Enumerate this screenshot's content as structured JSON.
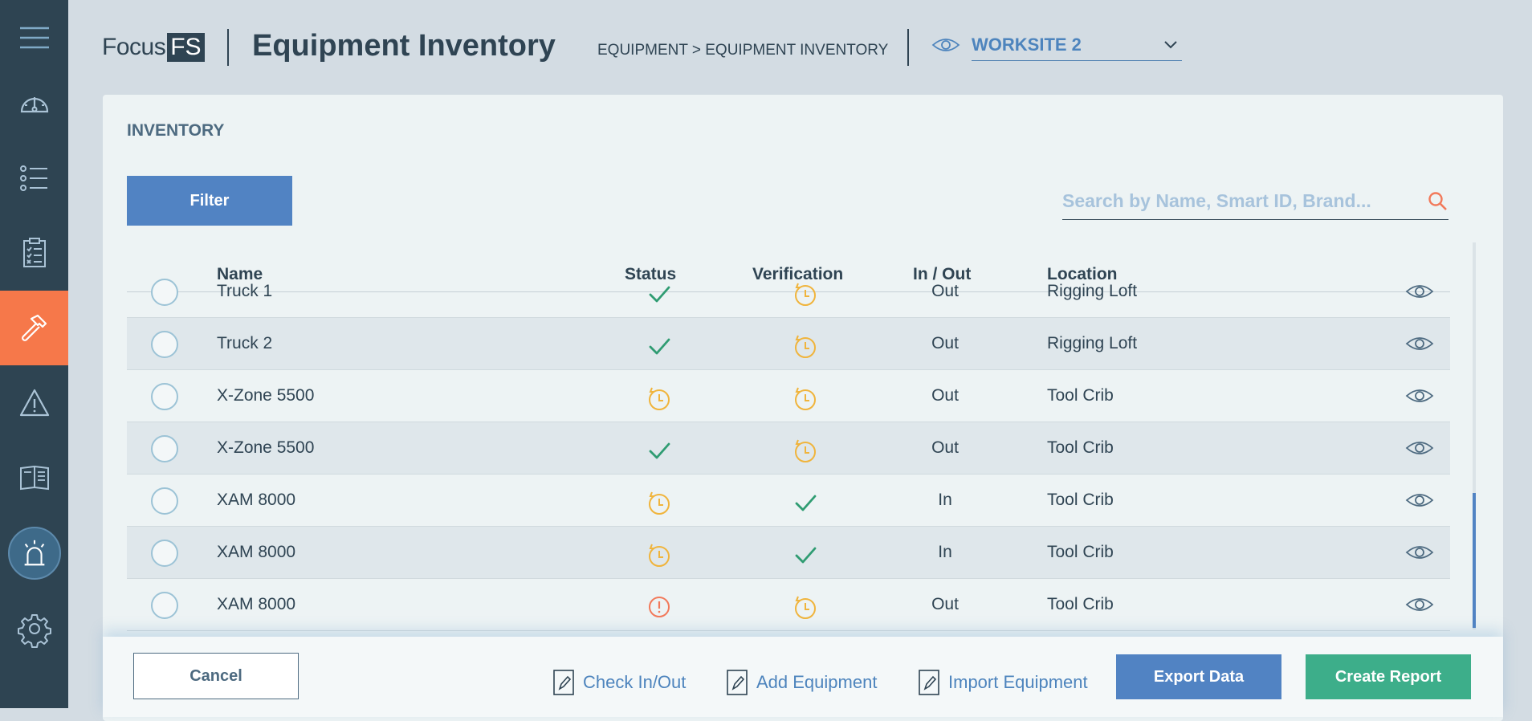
{
  "header": {
    "logo_text": "Focus",
    "logo_box": "FS",
    "title": "Equipment Inventory",
    "breadcrumb": "EQUIPMENT > EQUIPMENT INVENTORY",
    "worksite": "WORKSITE 2"
  },
  "sidebar": {
    "items": [
      {
        "icon": "menu-icon"
      },
      {
        "icon": "dashboard-icon"
      },
      {
        "icon": "list-icon"
      },
      {
        "icon": "checklist-icon"
      },
      {
        "icon": "hammer-icon",
        "active": true
      },
      {
        "icon": "warning-icon"
      },
      {
        "icon": "manual-icon"
      },
      {
        "icon": "alarm-icon"
      },
      {
        "icon": "gear-icon"
      }
    ]
  },
  "panel": {
    "title": "INVENTORY",
    "filter_label": "Filter",
    "search_placeholder": "Search by Name, Smart ID, Brand..."
  },
  "table": {
    "columns": [
      "Name",
      "Status",
      "Verification",
      "In / Out",
      "Location"
    ],
    "rows": [
      {
        "name": "Truck 1",
        "status": "check",
        "verification": "pending",
        "inout": "Out",
        "location": "Rigging Loft"
      },
      {
        "name": "Truck 2",
        "status": "check",
        "verification": "pending",
        "inout": "Out",
        "location": "Rigging Loft"
      },
      {
        "name": "X-Zone 5500",
        "status": "pending",
        "verification": "pending",
        "inout": "Out",
        "location": "Tool Crib"
      },
      {
        "name": "X-Zone 5500",
        "status": "check",
        "verification": "pending",
        "inout": "Out",
        "location": "Tool Crib"
      },
      {
        "name": "XAM 8000",
        "status": "pending",
        "verification": "check",
        "inout": "In",
        "location": "Tool Crib"
      },
      {
        "name": "XAM 8000",
        "status": "pending",
        "verification": "check",
        "inout": "In",
        "location": "Tool Crib"
      },
      {
        "name": "XAM 8000",
        "status": "alert",
        "verification": "pending",
        "inout": "Out",
        "location": "Tool Crib"
      }
    ]
  },
  "footer": {
    "cancel": "Cancel",
    "check_in_out": "Check In/Out",
    "add_equipment": "Add Equipment",
    "import_equipment": "Import Equipment",
    "export_data": "Export Data",
    "create_report": "Create Report"
  },
  "colors": {
    "sidebar": "#2e4452",
    "active_nav": "#f6784a",
    "primary": "#5183c3",
    "success": "#3dae8a",
    "check": "#2f9c72",
    "pending": "#f0b43c",
    "alert": "#f2795a"
  }
}
